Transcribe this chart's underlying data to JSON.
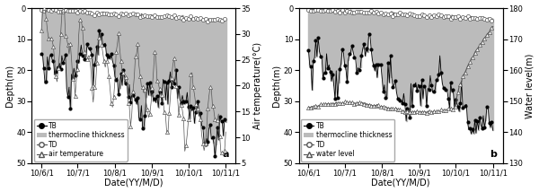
{
  "panel_a": {
    "label": "a",
    "ylabel_left": "Depth(m)",
    "ylabel_right": "Air temperature(°C)",
    "xlabel": "Date(YY/M/D)",
    "ylim_left": [
      50,
      0
    ],
    "ylim_right": [
      5,
      35
    ],
    "yticks_left": [
      0,
      10,
      20,
      30,
      40,
      50
    ],
    "yticks_right": [
      5,
      10,
      15,
      20,
      25,
      30,
      35
    ],
    "legend": [
      "TB",
      "thermocline thickness",
      "TD",
      "air temperature"
    ]
  },
  "panel_b": {
    "label": "b",
    "ylabel_left": "Depth(m)",
    "ylabel_right": "Water level(m)",
    "xlabel": "Date(YY/M/D)",
    "ylim_left": [
      50,
      0
    ],
    "ylim_right": [
      130,
      180
    ],
    "yticks_left": [
      0,
      10,
      20,
      30,
      40,
      50
    ],
    "yticks_right": [
      130,
      140,
      150,
      160,
      170,
      180
    ],
    "legend": [
      "TB",
      "thermocline thickness",
      "TD",
      "water level"
    ]
  },
  "fig_background": "#ffffff",
  "thickness_color": "#bbbbbb",
  "TB_color": "#000000",
  "tick_fontsize": 6,
  "label_fontsize": 7,
  "legend_fontsize": 5.5
}
